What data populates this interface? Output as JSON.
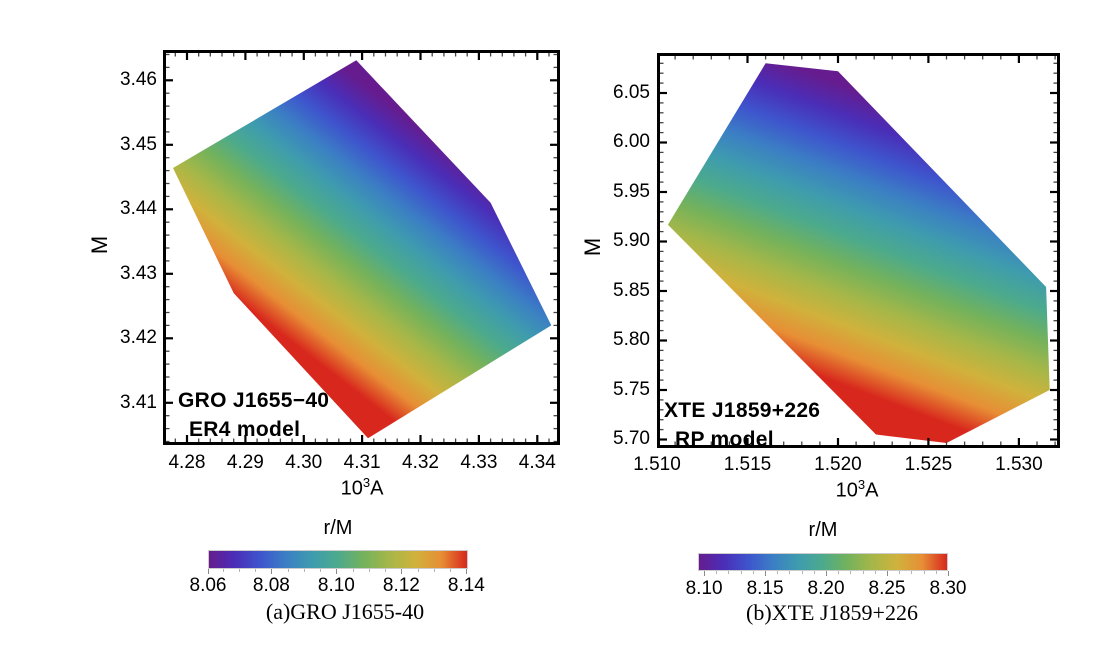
{
  "colormap": [
    "#661c8e",
    "#4a2eb8",
    "#3e55cd",
    "#3b7fc4",
    "#3e9cae",
    "#4caa8c",
    "#74b25b",
    "#a6b748",
    "#d0b23c",
    "#e78e35",
    "#d8271d"
  ],
  "chart_data": [
    {
      "type": "shaded-region-map",
      "annotation_line1": "GRO J1655−40",
      "annotation_line2": "ER4 model",
      "caption": "(a)GRO J1655-40",
      "xlabel_base": "10",
      "xlabel_exp": "3",
      "xlabel_suffix": "A",
      "ylabel": "M",
      "x_axis": {
        "lim": [
          4.27589,
          4.34389
        ],
        "minor_step": 0.002,
        "ticks": [
          {
            "v": 4.28,
            "label": "4.28"
          },
          {
            "v": 4.29,
            "label": "4.29"
          },
          {
            "v": 4.3,
            "label": "4.30"
          },
          {
            "v": 4.31,
            "label": "4.31"
          },
          {
            "v": 4.32,
            "label": "4.32"
          },
          {
            "v": 4.33,
            "label": "4.33"
          },
          {
            "v": 4.34,
            "label": "4.34"
          }
        ]
      },
      "y_axis": {
        "lim": [
          3.40345,
          3.4647
        ],
        "minor_step": 0.002,
        "ticks": [
          {
            "v": 3.41,
            "label": "3.41"
          },
          {
            "v": 3.42,
            "label": "3.42"
          },
          {
            "v": 3.43,
            "label": "3.43"
          },
          {
            "v": 3.44,
            "label": "3.44"
          },
          {
            "v": 3.45,
            "label": "3.45"
          },
          {
            "v": 3.46,
            "label": "3.46"
          }
        ]
      },
      "region": {
        "vertices_xy": [
          [
            4.309,
            3.4631
          ],
          [
            4.332,
            3.441
          ],
          [
            4.3424,
            3.422
          ],
          [
            4.311,
            3.4045
          ],
          [
            4.288,
            3.427
          ],
          [
            4.2776,
            3.4464
          ]
        ]
      },
      "shading": {
        "value_name": "r/M",
        "from_xy": [
          4.3141,
          3.4081
        ],
        "from_value": 8.1405,
        "to_xy": [
          4.3401,
          3.4386
        ],
        "to_value": 8.0605
      },
      "colorbar": {
        "title": "r/M",
        "min": 8.0605,
        "max": 8.1405,
        "minor_step": 0.005,
        "ticks": [
          {
            "v": 8.06,
            "label": "8.06"
          },
          {
            "v": 8.08,
            "label": "8.08"
          },
          {
            "v": 8.1,
            "label": "8.10"
          },
          {
            "v": 8.12,
            "label": "8.12"
          },
          {
            "v": 8.14,
            "label": "8.14"
          }
        ]
      }
    },
    {
      "type": "shaded-region-map",
      "annotation_line1": "XTE J1859+226",
      "annotation_line2": "RP model",
      "caption": "(b)XTE J1859+226",
      "xlabel_base": "10",
      "xlabel_exp": "3",
      "xlabel_suffix": "A",
      "ylabel": "M",
      "x_axis": {
        "lim": [
          1.51,
          1.53227
        ],
        "minor_step": 0.001,
        "ticks": [
          {
            "v": 1.51,
            "label": "1.510"
          },
          {
            "v": 1.515,
            "label": "1.515"
          },
          {
            "v": 1.52,
            "label": "1.520"
          },
          {
            "v": 1.525,
            "label": "1.525"
          },
          {
            "v": 1.53,
            "label": "1.530"
          }
        ]
      },
      "y_axis": {
        "lim": [
          5.69141,
          6.0904
        ],
        "minor_step": 0.01,
        "ticks": [
          {
            "v": 5.7,
            "label": "5.70"
          },
          {
            "v": 5.75,
            "label": "5.75"
          },
          {
            "v": 5.8,
            "label": "5.80"
          },
          {
            "v": 5.85,
            "label": "5.85"
          },
          {
            "v": 5.9,
            "label": "5.90"
          },
          {
            "v": 5.95,
            "label": "5.95"
          },
          {
            "v": 6.0,
            "label": "6.00"
          },
          {
            "v": 6.05,
            "label": "6.05"
          }
        ]
      },
      "region": {
        "vertices_xy": [
          [
            1.516,
            6.08
          ],
          [
            1.52,
            6.072
          ],
          [
            1.5315,
            5.854
          ],
          [
            1.5317,
            5.75
          ],
          [
            1.526,
            5.6965
          ],
          [
            1.5221,
            5.705
          ],
          [
            1.5106,
            5.917
          ]
        ]
      },
      "shading": {
        "value_name": "r/M",
        "from_xy": [
          1.52635,
          5.71333
        ],
        "from_value": 8.3,
        "to_xy": [
          1.53182,
          5.97838
        ],
        "to_value": 8.095
      },
      "colorbar": {
        "title": "r/M",
        "min": 8.095,
        "max": 8.3,
        "minor_step": 0.01,
        "ticks": [
          {
            "v": 8.1,
            "label": "8.10"
          },
          {
            "v": 8.15,
            "label": "8.15"
          },
          {
            "v": 8.2,
            "label": "8.20"
          },
          {
            "v": 8.25,
            "label": "8.25"
          },
          {
            "v": 8.3,
            "label": "8.30"
          }
        ]
      }
    }
  ]
}
